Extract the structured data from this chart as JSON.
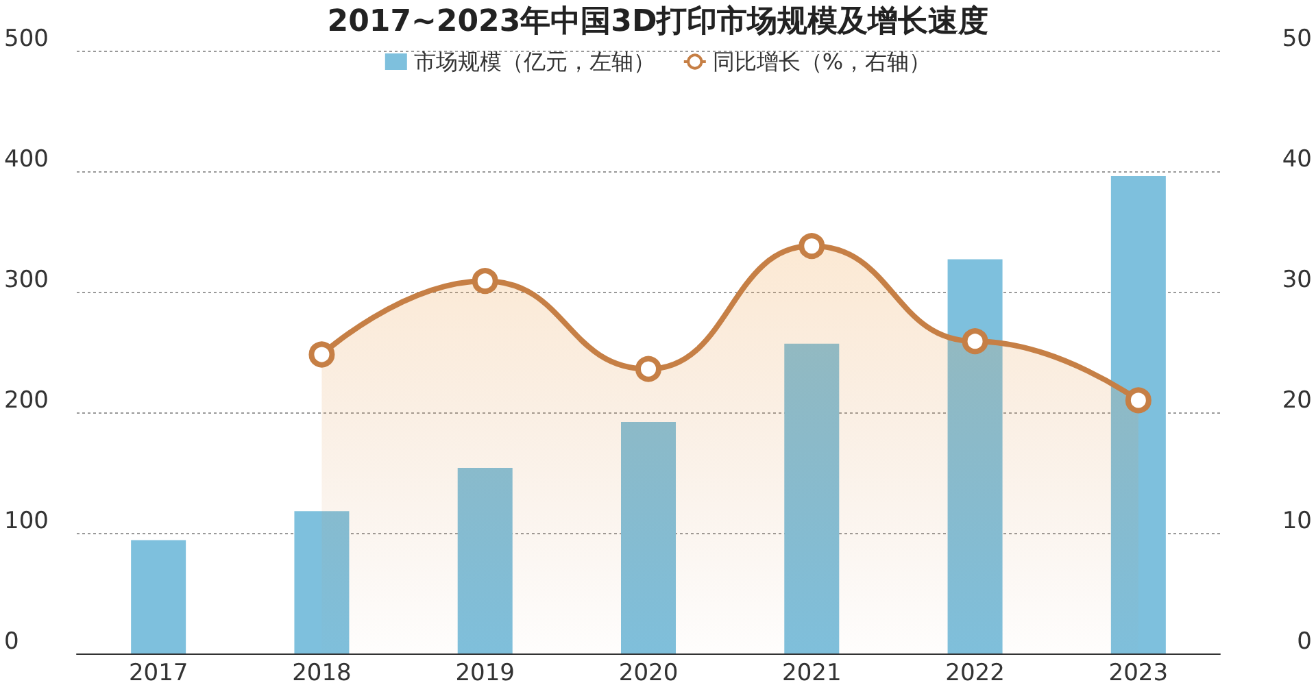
{
  "chart_data": {
    "type": "bar",
    "title": "2017~2023年中国3D打印市场规模及增长速度",
    "categories": [
      "2017",
      "2018",
      "2019",
      "2020",
      "2021",
      "2022",
      "2023"
    ],
    "series": [
      {
        "name": "市场规模（亿元，左轴）",
        "color": "#7ec0dd",
        "values": [
          94,
          118,
          154,
          192,
          257,
          327,
          396
        ]
      },
      {
        "name": "同比增长（%，右轴）",
        "type": "area",
        "axis": "y2",
        "color": "#c67f45",
        "marker": "circle",
        "values": [
          null,
          24.8,
          30.9,
          23.6,
          33.8,
          25.9,
          21.0
        ]
      }
    ],
    "ylim": [
      0,
      500
    ],
    "yticks": [
      0,
      100,
      200,
      300,
      400,
      500
    ],
    "y2lim": [
      0,
      50
    ],
    "y2ticks": [
      0,
      10,
      20,
      30,
      40,
      50
    ],
    "grid": "y",
    "legend": "top"
  }
}
